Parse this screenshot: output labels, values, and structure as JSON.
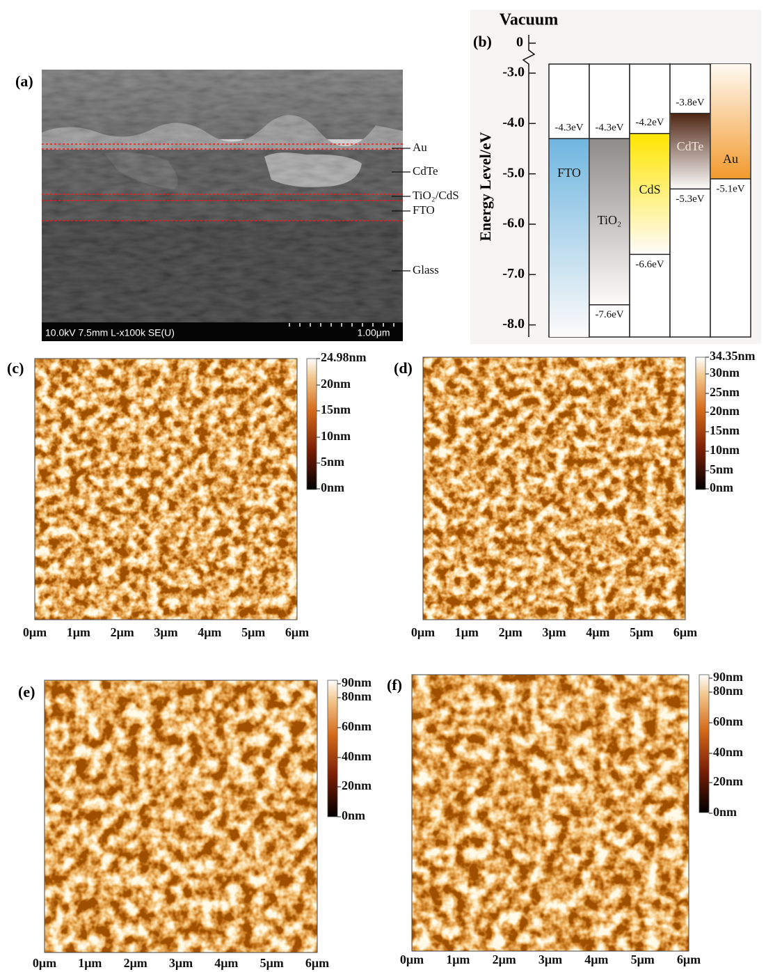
{
  "panel_labels": [
    "(a)",
    "(b)",
    "(c)",
    "(d)",
    "(e)",
    "(f)"
  ],
  "sem": {
    "layers": [
      "Au",
      "CdTe",
      "TiO₂/CdS",
      "FTO",
      "Glass"
    ],
    "info": "10.0kV 7.5mm L-x100k SE(U)",
    "scale": "1.00μm"
  },
  "afm": [
    {
      "scale_labels": [
        "24.98nm",
        "20nm",
        "15nm",
        "10nm",
        "5nm",
        "0nm"
      ],
      "x_labels": [
        "0μm",
        "1μm",
        "2μm",
        "3μm",
        "4μm",
        "5μm",
        "6μm"
      ]
    },
    {
      "scale_labels": [
        "34.35nm",
        "30nm",
        "25nm",
        "20nm",
        "15nm",
        "10nm",
        "5nm",
        "0nm"
      ],
      "x_labels": [
        "0μm",
        "1μm",
        "2μm",
        "3μm",
        "4μm",
        "5μm",
        "6μm"
      ]
    },
    {
      "scale_labels": [
        "90nm",
        "80nm",
        "60nm",
        "40nm",
        "20nm",
        "0nm"
      ],
      "x_labels": [
        "0μm",
        "1μm",
        "2μm",
        "3μm",
        "4μm",
        "5μm",
        "6μm"
      ]
    },
    {
      "scale_labels": [
        "90nm",
        "80nm",
        "60nm",
        "40nm",
        "20nm",
        "0nm"
      ],
      "x_labels": [
        "0μm",
        "1μm",
        "2μm",
        "3μm",
        "4μm",
        "5μm",
        "6μm"
      ]
    }
  ],
  "chart_data": {
    "type": "band",
    "title": "Vacuum",
    "y_label": "Energy Level/eV",
    "categories": [
      "FTO",
      "TiO₂",
      "CdS",
      "CdTe",
      "Au"
    ],
    "colors": [
      "#6fb6e0",
      "#8f8b89",
      "#ffe600",
      "#4e2614",
      "#f29a2e"
    ],
    "conduction": {
      "values": [
        -4.3,
        -4.3,
        -4.2,
        -3.8,
        -5.1
      ],
      "value_labels": [
        "-4.3eV",
        "-4.3eV",
        "-4.2eV",
        "-3.8eV",
        "-5.1eV"
      ]
    },
    "valence": {
      "values": [
        null,
        -7.6,
        -6.6,
        -5.3,
        null
      ],
      "value_labels": [
        null,
        "-7.6eV",
        "-6.6eV",
        "-5.3eV",
        null
      ]
    },
    "ylim": [
      -8.24,
      -2.82
    ],
    "yticks": [
      {
        "value": -3,
        "label": "-3.0"
      },
      {
        "value": -4,
        "label": "-4.0"
      },
      {
        "value": -5,
        "label": "-5.0"
      },
      {
        "value": -6,
        "label": "-6.0"
      },
      {
        "value": -7,
        "label": "-7.0"
      },
      {
        "value": -8,
        "label": "-8.0"
      }
    ],
    "break_ticks": [
      0
    ]
  }
}
